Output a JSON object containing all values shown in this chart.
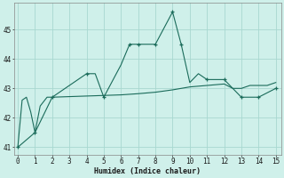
{
  "xlabel": "Humidex (Indice chaleur)",
  "bg_color": "#cff0ea",
  "grid_color": "#a8d8d0",
  "line_color": "#1a6b5a",
  "line1_x": [
    0,
    0.25,
    0.5,
    0.75,
    1,
    1.3,
    1.7,
    2,
    4,
    4.5,
    5,
    6,
    6.5,
    7,
    8,
    9,
    9.5,
    10,
    10.5,
    11,
    12,
    13,
    13.5,
    14,
    15
  ],
  "line1_y": [
    41.0,
    42.6,
    42.7,
    42.2,
    41.5,
    42.4,
    42.7,
    42.7,
    43.5,
    43.5,
    42.7,
    43.8,
    44.5,
    44.5,
    44.5,
    45.6,
    44.5,
    43.2,
    43.5,
    43.3,
    43.3,
    42.7,
    42.7,
    42.7,
    43.0
  ],
  "line1_markers_x": [
    0,
    1,
    2,
    4,
    5,
    6.5,
    7,
    8,
    9,
    9.5,
    11,
    12,
    13,
    14,
    15
  ],
  "line1_markers_y": [
    41.0,
    41.5,
    42.7,
    43.5,
    42.7,
    44.5,
    44.5,
    44.5,
    45.6,
    44.5,
    43.3,
    43.3,
    42.7,
    42.7,
    43.0
  ],
  "line2_x": [
    0,
    1,
    2,
    3,
    4,
    5,
    6,
    7,
    8,
    9,
    10,
    11,
    12,
    12.5,
    13,
    13.5,
    14,
    14.5,
    15
  ],
  "line2_y": [
    41.0,
    41.5,
    42.7,
    42.72,
    42.74,
    42.76,
    42.78,
    42.82,
    42.87,
    42.95,
    43.05,
    43.1,
    43.15,
    43.0,
    43.0,
    43.1,
    43.1,
    43.1,
    43.2
  ],
  "ylim": [
    40.75,
    45.9
  ],
  "xlim": [
    -0.2,
    15.3
  ],
  "yticks": [
    41,
    42,
    43,
    44,
    45
  ],
  "xticks": [
    0,
    1,
    2,
    3,
    4,
    5,
    6,
    7,
    8,
    9,
    10,
    11,
    12,
    13,
    14,
    15
  ]
}
